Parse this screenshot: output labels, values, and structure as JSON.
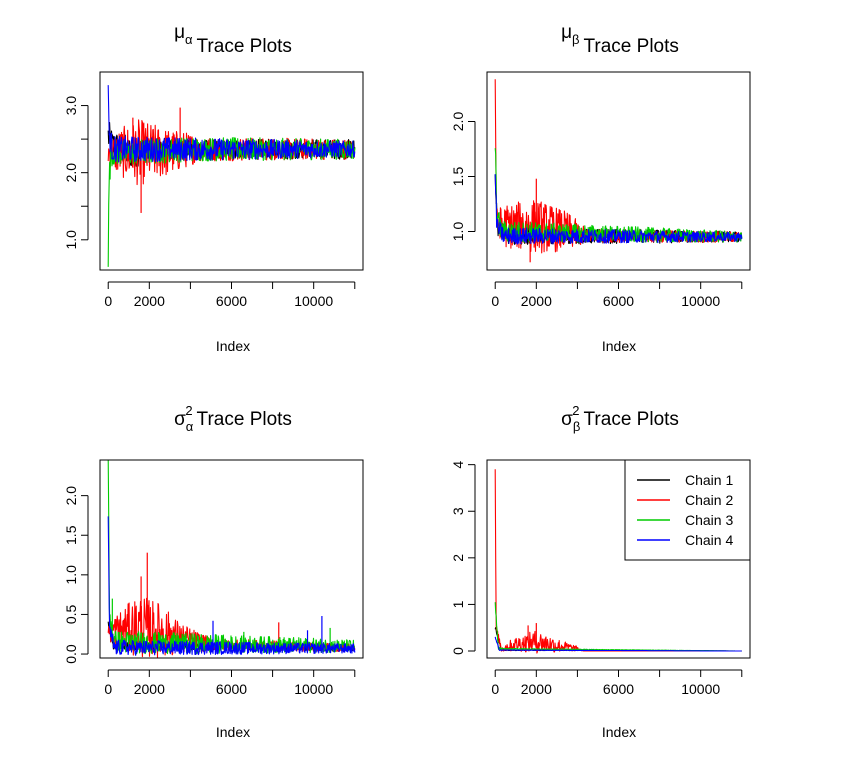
{
  "chart_data": [
    {
      "type": "line",
      "title_symbol": "μ",
      "title_sub": "α",
      "title_sup": "",
      "title_text": "Trace Plots",
      "xlabel": "Index",
      "ylabel": "",
      "xlim": [
        -400,
        12400
      ],
      "ylim": [
        0.55,
        3.5
      ],
      "x_ticks": [
        0,
        2000,
        4000,
        6000,
        8000,
        10000,
        12000
      ],
      "x_tick_labels": [
        "0",
        "2000",
        "",
        "6000",
        "",
        "10000",
        ""
      ],
      "y_ticks": [
        1.0,
        1.5,
        2.0,
        2.5,
        3.0
      ],
      "y_tick_labels": [
        "1.0",
        "",
        "2.0",
        "",
        "3.0"
      ],
      "grid": false,
      "series": [
        {
          "color": "#000000",
          "values": [
            [
              0,
              2.55
            ],
            [
              200,
              2.4
            ],
            [
              1000,
              2.3
            ],
            [
              2000,
              2.35
            ],
            [
              4000,
              2.35
            ],
            [
              6000,
              2.35
            ],
            [
              8000,
              2.35
            ],
            [
              10000,
              2.35
            ],
            [
              12000,
              2.35
            ]
          ],
          "spread": [
            [
              0,
              0.25
            ],
            [
              1000,
              0.25
            ],
            [
              3000,
              0.15
            ],
            [
              12000,
              0.15
            ]
          ]
        },
        {
          "color": "#ff0000",
          "values": [
            [
              0,
              2.3
            ],
            [
              1000,
              2.3
            ],
            [
              2000,
              2.3
            ],
            [
              3000,
              2.3
            ],
            [
              4000,
              2.35
            ],
            [
              6000,
              2.35
            ],
            [
              8000,
              2.35
            ],
            [
              10000,
              2.35
            ],
            [
              12000,
              2.35
            ]
          ],
          "spread": [
            [
              0,
              0.2
            ],
            [
              500,
              0.35
            ],
            [
              1500,
              0.5
            ],
            [
              2500,
              0.4
            ],
            [
              3500,
              0.3
            ],
            [
              4500,
              0.18
            ],
            [
              12000,
              0.15
            ]
          ],
          "spikes": [
            [
              1600,
              1.4
            ],
            [
              3500,
              2.97
            ],
            [
              1200,
              2.82
            ]
          ]
        },
        {
          "color": "#00cc00",
          "values": [
            [
              0,
              0.7
            ],
            [
              40,
              1.9
            ],
            [
              150,
              2.3
            ],
            [
              1000,
              2.3
            ],
            [
              4000,
              2.35
            ],
            [
              8000,
              2.35
            ],
            [
              12000,
              2.35
            ]
          ],
          "spread": [
            [
              0,
              0.2
            ],
            [
              12000,
              0.15
            ]
          ]
        },
        {
          "color": "#0000ff",
          "values": [
            [
              0,
              3.35
            ],
            [
              30,
              2.6
            ],
            [
              200,
              2.35
            ],
            [
              12000,
              2.35
            ]
          ],
          "spread": [
            [
              0,
              0.2
            ],
            [
              12000,
              0.12
            ]
          ]
        }
      ]
    },
    {
      "type": "line",
      "title_symbol": "μ",
      "title_sub": "β",
      "title_sup": "",
      "title_text": "Trace Plots",
      "xlabel": "Index",
      "ylabel": "",
      "xlim": [
        -400,
        12400
      ],
      "ylim": [
        0.65,
        2.45
      ],
      "x_ticks": [
        0,
        2000,
        4000,
        6000,
        8000,
        10000,
        12000
      ],
      "x_tick_labels": [
        "0",
        "2000",
        "",
        "6000",
        "",
        "10000",
        ""
      ],
      "y_ticks": [
        1.0,
        1.5,
        2.0
      ],
      "y_tick_labels": [
        "1.0",
        "1.5",
        "2.0"
      ],
      "grid": false,
      "series": [
        {
          "color": "#000000",
          "values": [
            [
              0,
              1.5
            ],
            [
              100,
              1.05
            ],
            [
              500,
              0.96
            ],
            [
              12000,
              0.95
            ]
          ],
          "spread": [
            [
              0,
              0.08
            ],
            [
              12000,
              0.05
            ]
          ]
        },
        {
          "color": "#ff0000",
          "values": [
            [
              0,
              2.35
            ],
            [
              60,
              1.1
            ],
            [
              500,
              1.05
            ],
            [
              2000,
              1.05
            ],
            [
              3500,
              1.0
            ],
            [
              4500,
              0.96
            ],
            [
              12000,
              0.95
            ]
          ],
          "spread": [
            [
              0,
              0.1
            ],
            [
              500,
              0.2
            ],
            [
              2000,
              0.25
            ],
            [
              3500,
              0.18
            ],
            [
              4500,
              0.06
            ],
            [
              12000,
              0.05
            ]
          ],
          "spikes": [
            [
              2000,
              1.48
            ],
            [
              1700,
              0.72
            ]
          ]
        },
        {
          "color": "#00cc00",
          "values": [
            [
              0,
              1.8
            ],
            [
              80,
              1.15
            ],
            [
              300,
              1.0
            ],
            [
              12000,
              0.95
            ]
          ],
          "spread": [
            [
              0,
              0.1
            ],
            [
              12000,
              0.05
            ]
          ]
        },
        {
          "color": "#0000ff",
          "values": [
            [
              0,
              1.5
            ],
            [
              80,
              1.05
            ],
            [
              400,
              0.96
            ],
            [
              12000,
              0.95
            ]
          ],
          "spread": [
            [
              0,
              0.08
            ],
            [
              12000,
              0.04
            ]
          ]
        }
      ]
    },
    {
      "type": "line",
      "title_symbol": "σ",
      "title_sub": "α",
      "title_sup": "2",
      "title_text": "Trace Plots",
      "xlabel": "Index",
      "ylabel": "",
      "xlim": [
        -400,
        12400
      ],
      "ylim": [
        -0.05,
        2.45
      ],
      "x_ticks": [
        0,
        2000,
        4000,
        6000,
        8000,
        10000,
        12000
      ],
      "x_tick_labels": [
        "0",
        "2000",
        "",
        "6000",
        "",
        "10000",
        ""
      ],
      "y_ticks": [
        0.0,
        0.5,
        1.0,
        1.5,
        2.0
      ],
      "y_tick_labels": [
        "0.0",
        "0.5",
        "1.0",
        "1.5",
        "2.0"
      ],
      "grid": false,
      "series": [
        {
          "color": "#000000",
          "values": [
            [
              0,
              0.4
            ],
            [
              200,
              0.1
            ],
            [
              12000,
              0.08
            ]
          ],
          "spread": [
            [
              0,
              0.05
            ],
            [
              12000,
              0.04
            ]
          ]
        },
        {
          "color": "#ff0000",
          "values": [
            [
              0,
              0.3
            ],
            [
              500,
              0.3
            ],
            [
              1500,
              0.35
            ],
            [
              2500,
              0.3
            ],
            [
              3500,
              0.2
            ],
            [
              5000,
              0.12
            ],
            [
              8000,
              0.1
            ],
            [
              12000,
              0.08
            ]
          ],
          "spread": [
            [
              0,
              0.15
            ],
            [
              1500,
              0.4
            ],
            [
              2500,
              0.35
            ],
            [
              3500,
              0.2
            ],
            [
              5000,
              0.08
            ],
            [
              12000,
              0.05
            ]
          ],
          "spikes": [
            [
              1900,
              1.28
            ],
            [
              1600,
              0.98
            ],
            [
              8300,
              0.4
            ]
          ]
        },
        {
          "color": "#00cc00",
          "values": [
            [
              0,
              2.35
            ],
            [
              60,
              0.5
            ],
            [
              300,
              0.15
            ],
            [
              12000,
              0.1
            ]
          ],
          "spread": [
            [
              0,
              0.15
            ],
            [
              12000,
              0.08
            ]
          ],
          "spikes": [
            [
              200,
              0.7
            ],
            [
              10800,
              0.33
            ],
            [
              6600,
              0.28
            ]
          ]
        },
        {
          "color": "#0000ff",
          "values": [
            [
              0,
              1.65
            ],
            [
              60,
              0.3
            ],
            [
              300,
              0.08
            ],
            [
              12000,
              0.07
            ]
          ],
          "spread": [
            [
              0,
              0.1
            ],
            [
              12000,
              0.06
            ]
          ],
          "spikes": [
            [
              10400,
              0.48
            ],
            [
              5100,
              0.42
            ],
            [
              9700,
              0.3
            ]
          ]
        }
      ]
    },
    {
      "type": "line",
      "title_symbol": "σ",
      "title_sub": "β",
      "title_sup": "2",
      "title_text": "Trace Plots",
      "xlabel": "Index",
      "ylabel": "",
      "xlim": [
        -400,
        12400
      ],
      "ylim": [
        -0.15,
        4.1
      ],
      "x_ticks": [
        0,
        2000,
        4000,
        6000,
        8000,
        10000,
        12000
      ],
      "x_tick_labels": [
        "0",
        "2000",
        "",
        "6000",
        "",
        "10000",
        ""
      ],
      "y_ticks": [
        0,
        1,
        2,
        3,
        4
      ],
      "y_tick_labels": [
        "0",
        "1",
        "2",
        "3",
        "4"
      ],
      "grid": false,
      "legend_position": "top-right",
      "legend": [
        {
          "label": "Chain 1",
          "color": "#000000"
        },
        {
          "label": "Chain 2",
          "color": "#ff0000"
        },
        {
          "label": "Chain 3",
          "color": "#00cc00"
        },
        {
          "label": "Chain 4",
          "color": "#0000ff"
        }
      ],
      "series": [
        {
          "color": "#000000",
          "values": [
            [
              0,
              0.5
            ],
            [
              300,
              0.02
            ],
            [
              12000,
              0.0
            ]
          ],
          "spread": [
            [
              0,
              0.05
            ],
            [
              500,
              0.01
            ],
            [
              12000,
              0.0
            ]
          ]
        },
        {
          "color": "#ff0000",
          "values": [
            [
              0,
              3.9
            ],
            [
              40,
              0.5
            ],
            [
              300,
              0.05
            ],
            [
              1000,
              0.15
            ],
            [
              2000,
              0.2
            ],
            [
              3000,
              0.12
            ],
            [
              4000,
              0.05
            ],
            [
              4300,
              0.0
            ],
            [
              12000,
              0.0
            ]
          ],
          "spread": [
            [
              0,
              0.05
            ],
            [
              500,
              0.1
            ],
            [
              2000,
              0.25
            ],
            [
              3000,
              0.15
            ],
            [
              4000,
              0.05
            ],
            [
              4300,
              0.0
            ],
            [
              12000,
              0.0
            ]
          ],
          "spikes": [
            [
              2000,
              0.6
            ],
            [
              1600,
              0.55
            ]
          ]
        },
        {
          "color": "#00cc00",
          "values": [
            [
              0,
              1.0
            ],
            [
              150,
              0.05
            ],
            [
              12000,
              0.0
            ]
          ],
          "spread": [
            [
              0,
              0.05
            ],
            [
              400,
              0.01
            ],
            [
              12000,
              0.0
            ]
          ]
        },
        {
          "color": "#0000ff",
          "values": [
            [
              0,
              0.3
            ],
            [
              200,
              0.02
            ],
            [
              12000,
              0.0
            ]
          ],
          "spread": [
            [
              0,
              0.02
            ],
            [
              400,
              0.0
            ],
            [
              12000,
              0.0
            ]
          ]
        }
      ]
    }
  ]
}
